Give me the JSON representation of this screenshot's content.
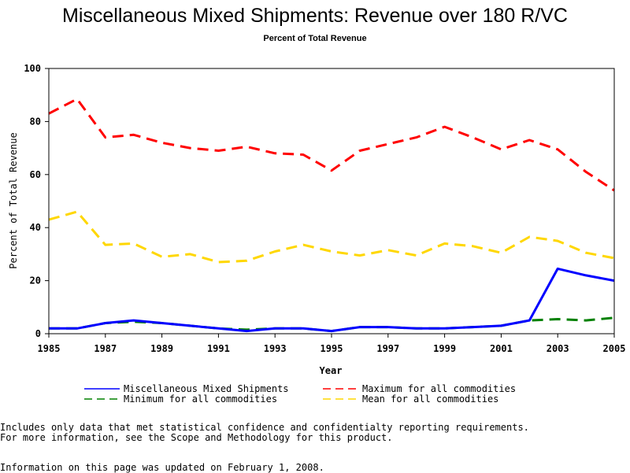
{
  "chart_data": {
    "type": "line",
    "title": "Miscellaneous Mixed Shipments: Revenue over 180 R/VC",
    "subtitle": "Percent of Total Revenue",
    "xlabel": "Year",
    "ylabel": "Percent of Total Revenue",
    "xlim": [
      1985,
      2005
    ],
    "ylim": [
      0,
      100
    ],
    "x_ticks": [
      "1985",
      "1987",
      "1989",
      "1991",
      "1993",
      "1995",
      "1997",
      "1999",
      "2001",
      "2003",
      "2005"
    ],
    "y_ticks": [
      "0",
      "20",
      "40",
      "60",
      "80",
      "100"
    ],
    "x": [
      1985,
      1986,
      1987,
      1988,
      1989,
      1990,
      1991,
      1992,
      1993,
      1994,
      1995,
      1996,
      1997,
      1998,
      1999,
      2000,
      2001,
      2002,
      2003,
      2004,
      2005
    ],
    "series": [
      {
        "name": "Miscellaneous Mixed Shipments",
        "color": "#0000ff",
        "dash": "solid",
        "width": 3,
        "values": [
          2,
          2,
          4,
          5,
          4,
          3,
          2,
          1,
          2,
          2,
          1,
          2.5,
          2.5,
          2,
          2,
          2.5,
          3,
          5,
          24.5,
          22,
          20
        ]
      },
      {
        "name": "Maximum for all commodities",
        "color": "#ff0000",
        "dash": "dashed",
        "width": 3,
        "values": [
          83,
          88.5,
          74,
          75,
          72,
          70,
          69,
          70.5,
          68,
          67.5,
          61.5,
          69,
          71.5,
          74,
          78,
          74,
          69.5,
          73,
          69.5,
          61,
          54
        ]
      },
      {
        "name": "Minimum for all commodities",
        "color": "#008000",
        "dash": "dashed",
        "width": 3,
        "values": [
          2,
          2,
          4,
          4.5,
          4,
          3,
          2,
          1.5,
          2,
          2,
          1,
          2.5,
          2.5,
          2,
          2,
          2.5,
          3,
          5,
          5.5,
          5,
          6
        ]
      },
      {
        "name": "Mean for all commodities",
        "color": "#ffd700",
        "dash": "dashed",
        "width": 3,
        "values": [
          43,
          46,
          33.5,
          34,
          29,
          30,
          27,
          27.5,
          31,
          33.5,
          31,
          29.5,
          31.5,
          29.5,
          34,
          33,
          30.5,
          36.5,
          35,
          30.5,
          28.5
        ]
      }
    ],
    "legend_position": "bottom"
  },
  "footnotes": {
    "line1": "Includes only data that met statistical confidence and confidentialty reporting requirements.",
    "line2": "For more information, see the Scope and Methodology for this product.",
    "line3": "Information on this page was updated on February 1, 2008."
  }
}
